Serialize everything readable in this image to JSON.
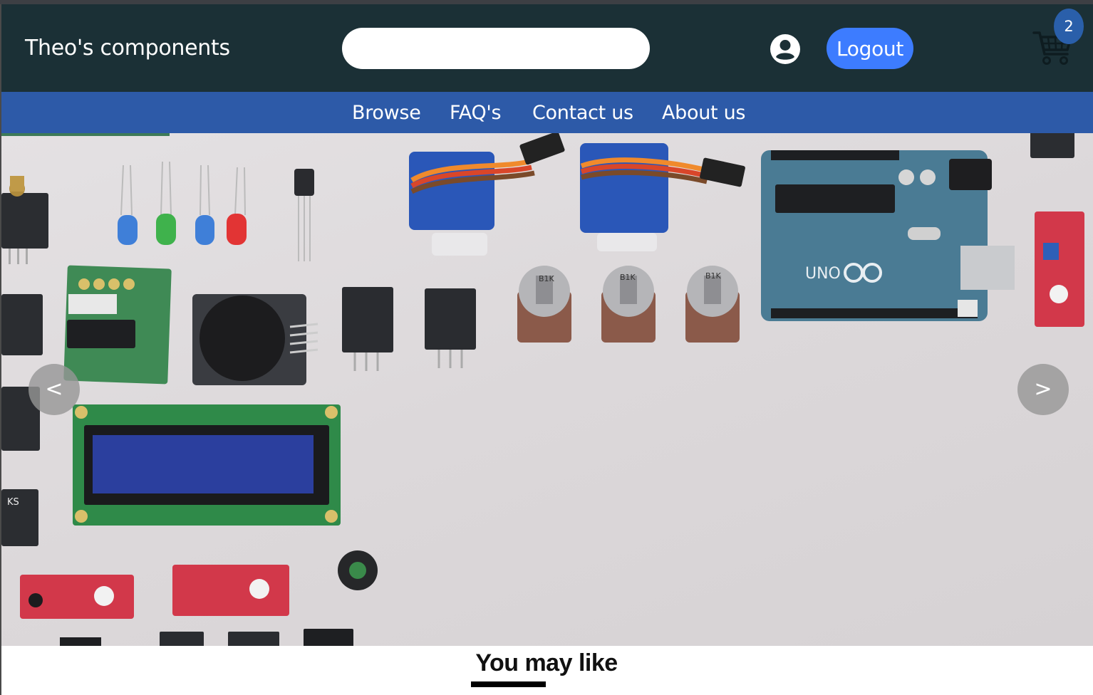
{
  "header": {
    "brand": "Theo's components",
    "search_value": "",
    "logout_label": "Logout",
    "cart_count": "2",
    "user_icon": "account-circle-icon",
    "cart_icon": "shopping-cart-icon"
  },
  "nav": {
    "items": [
      {
        "label": "Browse"
      },
      {
        "label": "FAQ's"
      },
      {
        "label": "Contact us"
      },
      {
        "label": "About us"
      }
    ]
  },
  "carousel": {
    "prev_label": "<",
    "next_label": ">",
    "pcb_labels": {
      "arduino": "UNO",
      "pot": "B1K",
      "ks": "KS"
    }
  },
  "section": {
    "title": "You may like"
  },
  "colors": {
    "header_bg": "#1b3036",
    "nav_bg": "#2d5aa8",
    "accent": "#3d7cff",
    "badge": "#2a5faa"
  }
}
